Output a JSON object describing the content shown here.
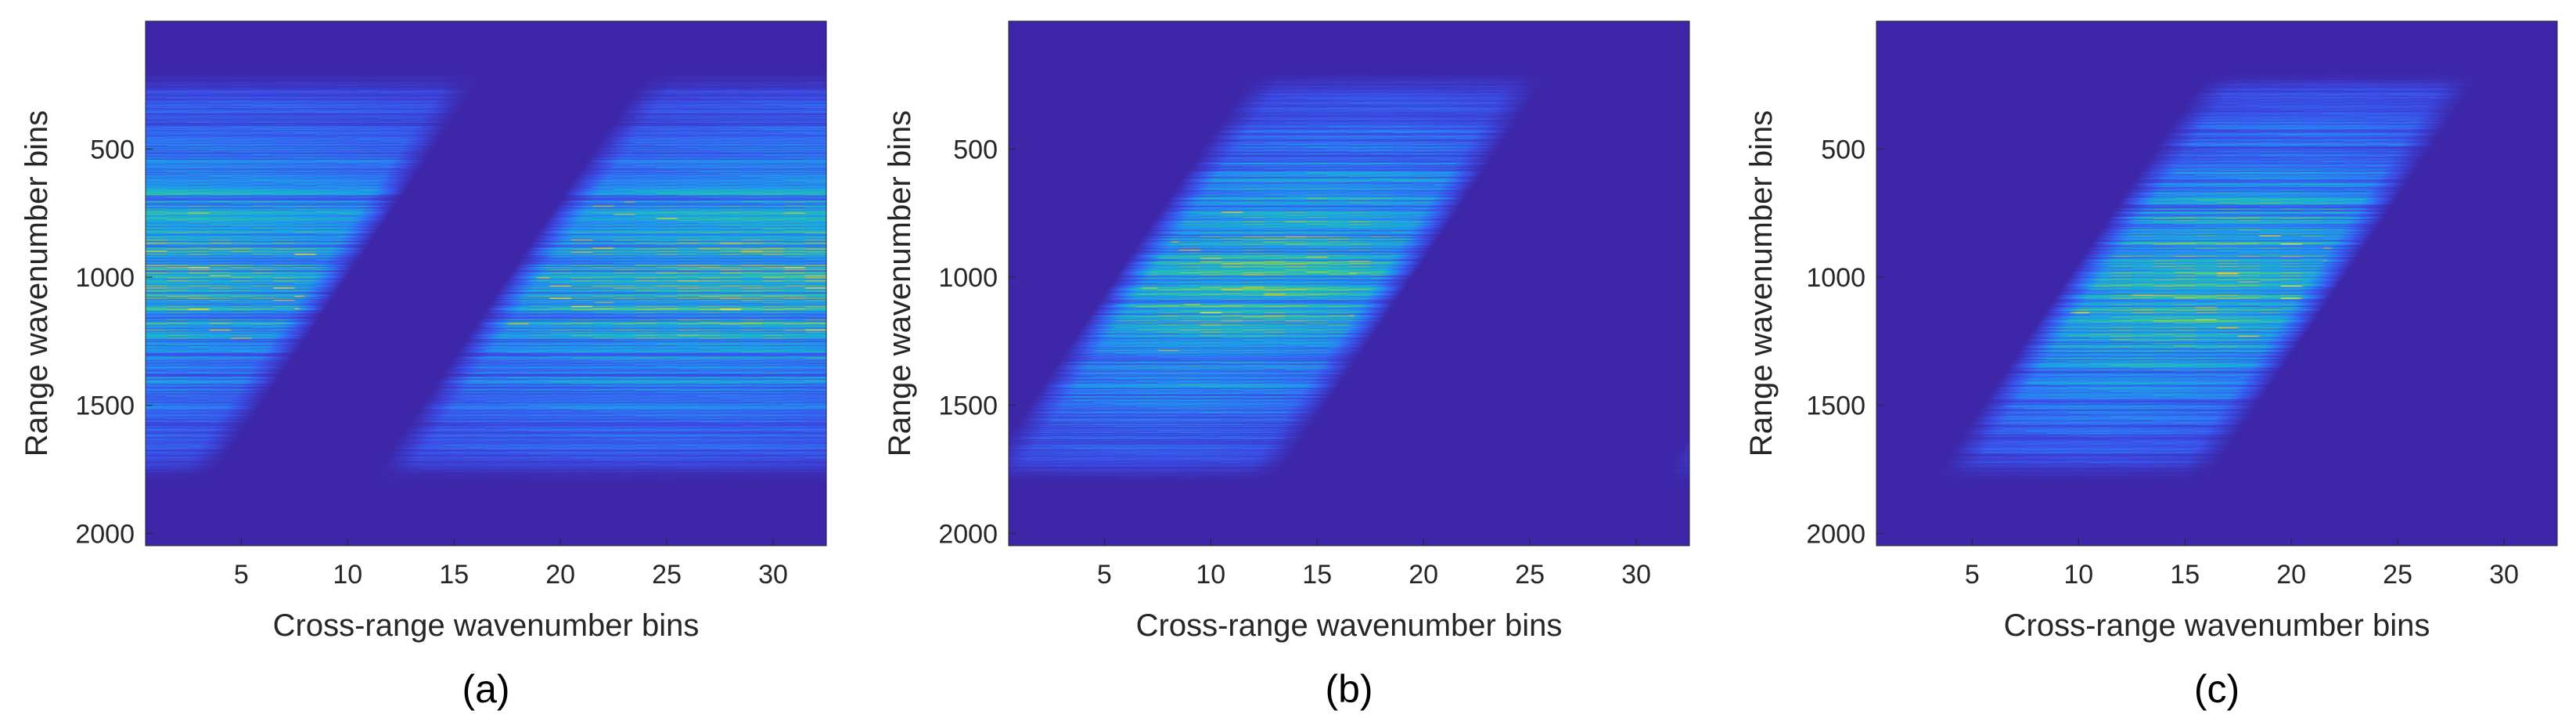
{
  "chart_data": [
    {
      "type": "heatmap",
      "caption": "(a)",
      "xlabel": "Cross-range wavenumber bins",
      "ylabel": "Range wavenumber bins",
      "xlim": [
        0.5,
        32.5
      ],
      "ylim": [
        1,
        2048
      ],
      "y_reversed": true,
      "xticks": [
        5,
        10,
        15,
        20,
        25,
        30
      ],
      "yticks": [
        500,
        1000,
        1500,
        2000
      ],
      "colormap": "parula",
      "background_color": "#3d26a8",
      "support": {
        "description": "sheared band wrapping around x edge",
        "top_row": 200,
        "bottom_row": 1800,
        "left_edge_at_top": -8,
        "left_edge_at_bottom": -21,
        "right_edge_at_top": 16.5,
        "right_edge_at_bottom": 3.5,
        "wrap_period": 32,
        "peak_row": 1000
      }
    },
    {
      "type": "heatmap",
      "caption": "(b)",
      "xlabel": "Cross-range wavenumber bins",
      "ylabel": "Range wavenumber bins",
      "xlim": [
        0.5,
        32.5
      ],
      "ylim": [
        1,
        2048
      ],
      "y_reversed": true,
      "xticks": [
        5,
        10,
        15,
        20,
        25,
        30
      ],
      "yticks": [
        500,
        1000,
        1500,
        2000
      ],
      "colormap": "parula",
      "background_color": "#3d26a8",
      "support": {
        "description": "sheared band, slight wrap at right edge",
        "top_row": 200,
        "bottom_row": 1800,
        "left_edge_at_top": 12,
        "left_edge_at_bottom": -1,
        "right_edge_at_top": 26,
        "right_edge_at_bottom": 13,
        "wrap_period": 32,
        "peak_row": 1000
      }
    },
    {
      "type": "heatmap",
      "caption": "(c)",
      "xlabel": "Cross-range wavenumber bins",
      "ylabel": "Range wavenumber bins",
      "xlim": [
        0.5,
        32.5
      ],
      "ylim": [
        1,
        2048
      ],
      "y_reversed": true,
      "xticks": [
        5,
        10,
        15,
        20,
        25,
        30
      ],
      "yticks": [
        500,
        1000,
        1500,
        2000
      ],
      "colormap": "parula",
      "background_color": "#3d26a8",
      "support": {
        "description": "sheared band fully inside window",
        "top_row": 200,
        "bottom_row": 1800,
        "left_edge_at_top": 16,
        "left_edge_at_bottom": 3,
        "right_edge_at_top": 29,
        "right_edge_at_bottom": 16,
        "wrap_period": 32,
        "peak_row": 1000
      }
    }
  ]
}
